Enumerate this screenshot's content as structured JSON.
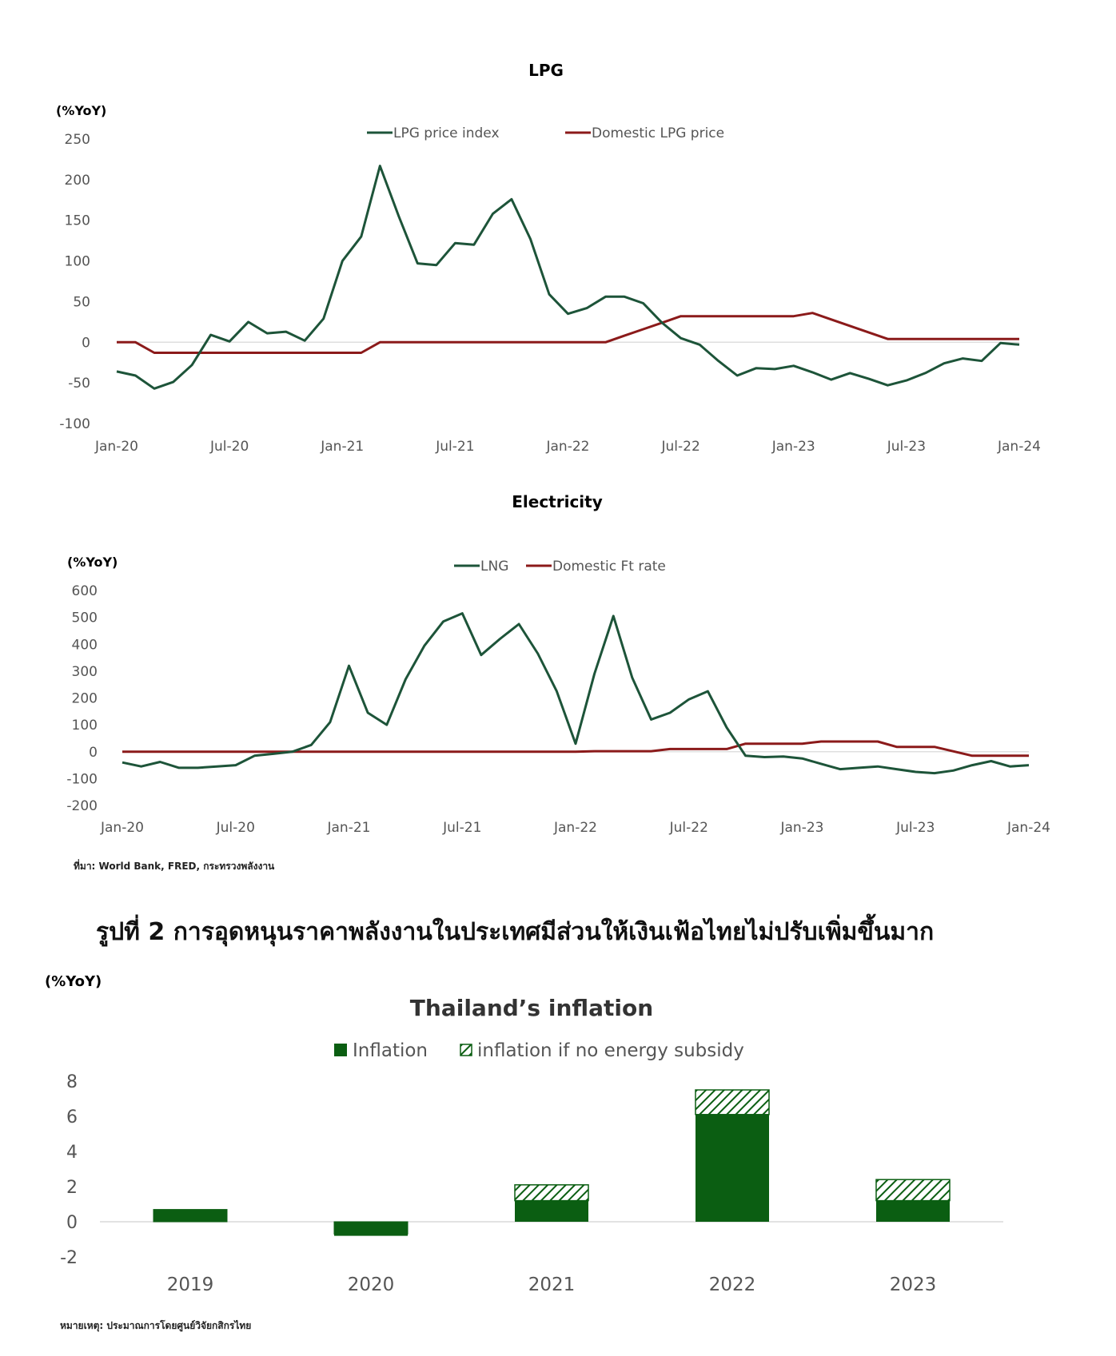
{
  "chart_data": [
    {
      "type": "line",
      "title": "LPG",
      "ylabel": "(%YoY)",
      "ylim": [
        -100,
        250
      ],
      "yticks": [
        250,
        200,
        150,
        100,
        50,
        0,
        -50,
        -100
      ],
      "xtick_labels": [
        "Jan-20",
        "Jul-20",
        "Jan-21",
        "Jul-21",
        "Jan-22",
        "Jul-22",
        "Jan-23",
        "Jul-23",
        "Jan-24"
      ],
      "legend_position": "top",
      "series": [
        {
          "name": "LPG price index",
          "color": "#1d5439",
          "values": [
            -36,
            -41,
            -57,
            -49,
            -28,
            9,
            1,
            25,
            11,
            13,
            2,
            29,
            100,
            130,
            217,
            155,
            97,
            95,
            122,
            120,
            158,
            176,
            127,
            59,
            35,
            42,
            56,
            56,
            48,
            24,
            5,
            -3,
            -23,
            -41,
            -32,
            -33,
            -29,
            -37,
            -46,
            -38,
            -45,
            -53,
            -47,
            -38,
            -26,
            -20,
            -23,
            -1,
            -3
          ],
          "x_months": [
            0,
            1,
            2,
            3,
            4,
            5,
            6,
            7,
            8,
            9,
            10,
            11,
            12,
            13,
            14,
            15,
            16,
            17,
            18,
            19,
            20,
            21,
            22,
            23,
            24,
            25,
            26,
            27,
            28,
            29,
            30,
            31,
            32,
            33,
            34,
            35,
            36,
            37,
            38,
            39,
            40,
            41,
            42,
            43,
            44,
            45,
            46,
            47,
            48
          ]
        },
        {
          "name": "Domestic LPG  price",
          "color": "#8b1a1a",
          "values": [
            0,
            0,
            -13,
            -13,
            -13,
            -13,
            -13,
            -13,
            -13,
            -13,
            -13,
            -13,
            -13,
            -13,
            0,
            0,
            0,
            0,
            0,
            0,
            0,
            0,
            0,
            0,
            0,
            0,
            0,
            8,
            16,
            24,
            32,
            32,
            32,
            32,
            32,
            32,
            32,
            36,
            28,
            20,
            12,
            4,
            4,
            4,
            4,
            4
          ],
          "x_months": [
            0,
            1,
            2,
            3,
            4,
            5,
            6,
            7,
            8,
            9,
            10,
            11,
            12,
            13,
            14,
            15,
            16,
            17,
            18,
            19,
            20,
            21,
            22,
            23,
            24,
            25,
            26,
            27,
            28,
            29,
            30,
            31,
            32,
            33,
            34,
            35,
            36,
            37,
            38,
            39,
            40,
            41,
            42,
            43,
            44,
            48
          ]
        }
      ]
    },
    {
      "type": "line",
      "title": "Electricity",
      "ylabel": "(%YoY)",
      "ylim": [
        -200,
        600
      ],
      "yticks": [
        600,
        500,
        400,
        300,
        200,
        100,
        0,
        -100,
        -200
      ],
      "xtick_labels": [
        "Jan-20",
        "Jul-20",
        "Jan-21",
        "Jul-21",
        "Jan-22",
        "Jul-22",
        "Jan-23",
        "Jul-23",
        "Jan-24"
      ],
      "legend_position": "top",
      "series": [
        {
          "name": "LNG",
          "color": "#1d5439",
          "values": [
            -40,
            -55,
            -38,
            -60,
            -60,
            -55,
            -50,
            -15,
            -8,
            0,
            25,
            110,
            320,
            145,
            100,
            270,
            395,
            485,
            515,
            360,
            420,
            475,
            365,
            225,
            30,
            290,
            505,
            275,
            120,
            145,
            195,
            225,
            90,
            -15,
            -20,
            -18,
            -25,
            -45,
            -65,
            -60,
            -55,
            -65,
            -75,
            -80,
            -70,
            -50,
            -35,
            -55,
            -50
          ],
          "x_months": [
            0,
            1,
            2,
            3,
            4,
            5,
            6,
            7,
            8,
            9,
            10,
            11,
            12,
            13,
            14,
            15,
            16,
            17,
            18,
            19,
            20,
            21,
            22,
            23,
            24,
            25,
            26,
            27,
            28,
            29,
            30,
            31,
            32,
            33,
            34,
            35,
            36,
            37,
            38,
            39,
            40,
            41,
            42,
            43,
            44,
            45,
            46,
            47,
            48
          ]
        },
        {
          "name": "Domestic Ft rate",
          "color": "#8b1a1a",
          "values": [
            0,
            0,
            0,
            2,
            2,
            2,
            2,
            10,
            10,
            10,
            10,
            30,
            30,
            30,
            30,
            38,
            38,
            38,
            38,
            18,
            18,
            18,
            -15,
            -15,
            -15
          ],
          "x_months": [
            0,
            23,
            24,
            25,
            26,
            27,
            28,
            29,
            30,
            31,
            32,
            33,
            34,
            35,
            36,
            37,
            38,
            39,
            40,
            41,
            42,
            43,
            45,
            46,
            48
          ]
        }
      ]
    },
    {
      "type": "bar",
      "title": "Thailand’s inflation",
      "ylabel": "(%YoY)",
      "ylim": [
        -2,
        8
      ],
      "yticks": [
        8,
        6,
        4,
        2,
        0,
        -2
      ],
      "categories": [
        "2019",
        "2020",
        "2021",
        "2022",
        "2023"
      ],
      "legend_position": "top",
      "series": [
        {
          "name": "Inflation",
          "color": "#0b5e12",
          "values": [
            0.7,
            -0.8,
            1.2,
            6.1,
            1.2
          ]
        },
        {
          "name": "inflation if no energy subsidy",
          "color": "#0b5e12",
          "pattern": "hatched",
          "values": [
            0.7,
            -0.7,
            2.1,
            7.5,
            2.4
          ]
        }
      ]
    }
  ],
  "source_1": "ที่มา: World Bank, FRED, กระทรวงพลังงาน",
  "figure_caption": "รูปที่ 2 การอุดหนุนราคาพลังงานในประเทศมีส่วนให้เงินเฟ้อไทยไม่ปรับเพิ่มขึ้นมาก",
  "source_2": "หมายเหตุ: ประมาณการโดยศูนย์วิจัยกสิกรไทย"
}
